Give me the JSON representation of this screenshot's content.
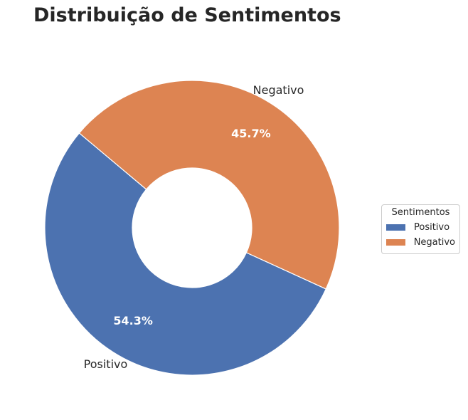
{
  "chart_data": {
    "type": "pie",
    "style": "donut",
    "title": "Distribuição de Sentimentos",
    "categories": [
      "Positivo",
      "Negativo"
    ],
    "values": [
      54.3,
      45.7
    ],
    "percent_labels": [
      "54.3%",
      "45.7%"
    ],
    "colors": [
      "#4c72b0",
      "#dd8452"
    ],
    "legend": {
      "title": "Sentimentos",
      "placement": "center-right",
      "entries": [
        "Positivo",
        "Negativo"
      ]
    }
  }
}
